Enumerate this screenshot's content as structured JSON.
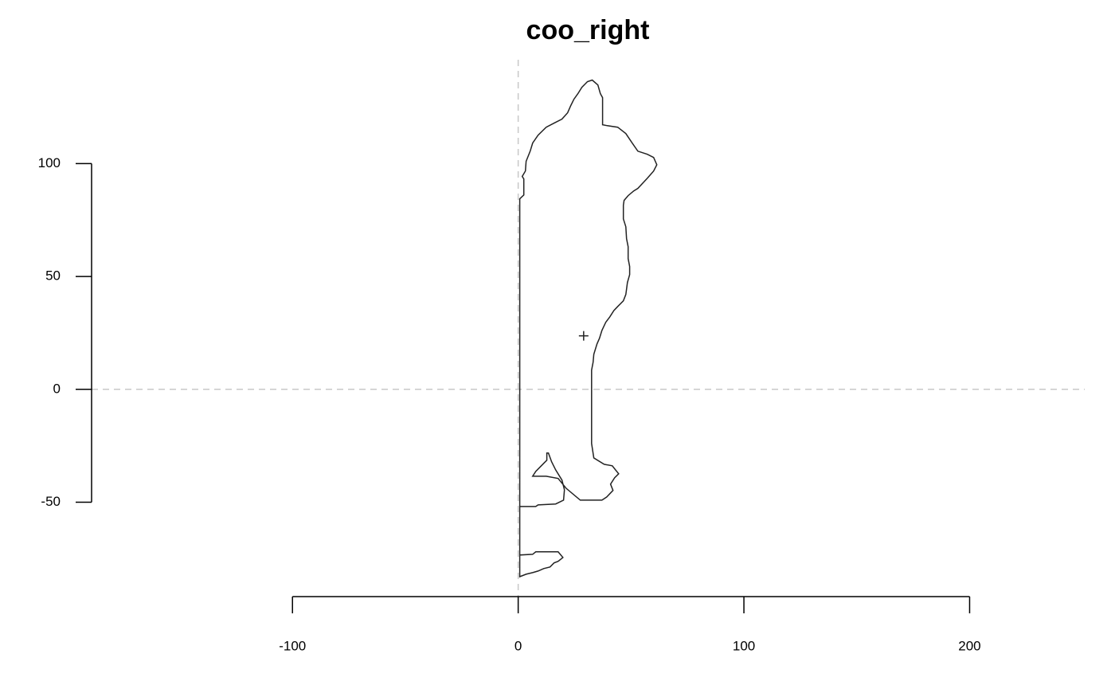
{
  "chart_data": {
    "type": "line",
    "title": "coo_right",
    "x": [
      0.7,
      3.5,
      6.4,
      8.8,
      11.3,
      14.1,
      15.9,
      17.7,
      19.8,
      17.7,
      7.8,
      6.4,
      0.7,
      0.7,
      7.8,
      8.8,
      16.6,
      20.1,
      20.5,
      19.4,
      16.6,
      14.8,
      13.4,
      12.7,
      12.7,
      11.3,
      7.8,
      6.4,
      12.4,
      17.7,
      21.2,
      27.5,
      37.1,
      39.2,
      42.0,
      40.9,
      42.7,
      44.5,
      43.1,
      41.7,
      38.1,
      33.5,
      32.5,
      32.5,
      33.2,
      33.5,
      34.9,
      36.0,
      37.1,
      38.8,
      40.6,
      42.4,
      44.1,
      46.6,
      47.7,
      48.4,
      49.4,
      49.4,
      48.7,
      48.7,
      48.0,
      47.7,
      46.6,
      46.6,
      46.9,
      48.7,
      51.2,
      53.0,
      57.2,
      60.0,
      61.4,
      60.0,
      57.2,
      53.0,
      50.5,
      47.7,
      44.1,
      39.5,
      37.4,
      37.4,
      36.4,
      35.3,
      32.8,
      30.7,
      28.2,
      26.5,
      24.7,
      23.3,
      21.9,
      19.4,
      15.9,
      12.4,
      8.8,
      6.4,
      5.3,
      3.5,
      3.2,
      1.8,
      2.5,
      2.5,
      0.7
    ],
    "values": [
      -83.0,
      -81.9,
      -81.2,
      -80.5,
      -79.4,
      -78.7,
      -76.9,
      -76.2,
      -74.5,
      -72.0,
      -72.0,
      -73.1,
      -73.4,
      -51.9,
      -51.9,
      -51.2,
      -50.8,
      -49.1,
      -44.5,
      -40.2,
      -35.7,
      -32.1,
      -28.2,
      -28.2,
      -31.4,
      -32.8,
      -36.4,
      -38.5,
      -38.5,
      -39.5,
      -43.8,
      -49.1,
      -49.1,
      -47.7,
      -44.8,
      -42.0,
      -39.2,
      -37.4,
      -35.7,
      -33.9,
      -33.2,
      -30.4,
      -24.0,
      8.5,
      12.0,
      15.5,
      20.1,
      22.6,
      26.1,
      29.7,
      32.1,
      34.9,
      36.7,
      39.2,
      42.0,
      47.3,
      50.8,
      54.4,
      57.9,
      63.2,
      66.7,
      72.0,
      75.5,
      81.5,
      83.7,
      85.8,
      87.9,
      89.0,
      93.5,
      96.7,
      99.5,
      102.7,
      104.1,
      105.5,
      109.1,
      113.3,
      116.1,
      116.8,
      117.2,
      129.2,
      131.0,
      134.8,
      137.0,
      136.3,
      133.8,
      131.0,
      128.5,
      125.7,
      122.5,
      119.7,
      117.9,
      116.1,
      112.6,
      109.1,
      105.5,
      101.0,
      96.7,
      94.3,
      93.2,
      86.1,
      84.4
    ],
    "color": "#222222",
    "centroid": {
      "x": 29.0,
      "y": 23.7
    },
    "reference_lines": {
      "x": 0,
      "y": 0,
      "color": "#c8c8c8"
    },
    "xlim": [
      -189,
      251
    ],
    "ylim": [
      -89,
      146
    ],
    "xticks": [
      -100,
      0,
      100,
      200
    ],
    "yticks": [
      -50,
      0,
      50,
      100
    ]
  }
}
